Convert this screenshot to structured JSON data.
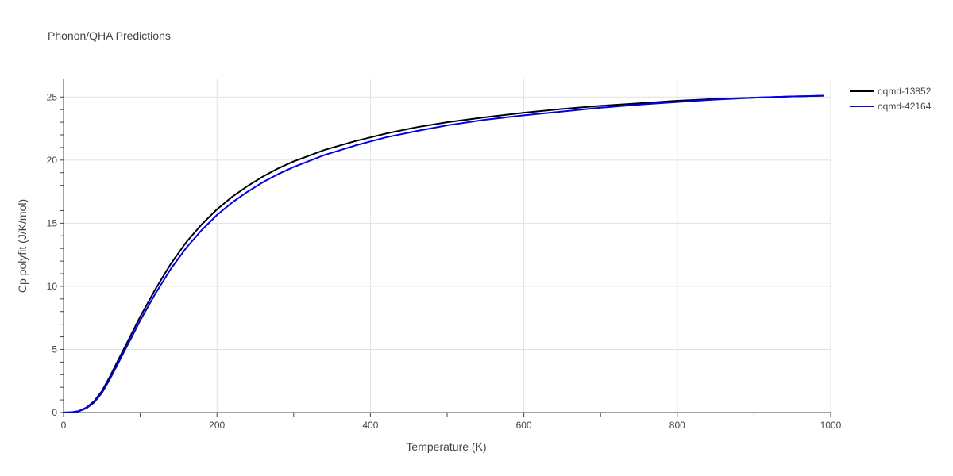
{
  "chart_data": {
    "type": "line",
    "title": "Phonon/QHA Predictions",
    "xlabel": "Temperature (K)",
    "ylabel": "Cp polyfit (J/K/mol)",
    "xlim": [
      0,
      1000
    ],
    "ylim": [
      0,
      26.4
    ],
    "xticks": [
      0,
      200,
      400,
      600,
      800,
      1000
    ],
    "yticks": [
      0,
      5,
      10,
      15,
      20,
      25
    ],
    "xtick_labels": [
      "0",
      "200",
      "400",
      "600",
      "800",
      "1000"
    ],
    "ytick_labels": [
      "0",
      "5",
      "10",
      "15",
      "20",
      "25"
    ],
    "grid": true,
    "legend_position": "top-right",
    "series": [
      {
        "name": "oqmd-13852",
        "color": "#000000",
        "x": [
          0,
          10,
          20,
          30,
          40,
          50,
          60,
          70,
          80,
          90,
          100,
          120,
          140,
          160,
          180,
          200,
          220,
          240,
          260,
          280,
          300,
          340,
          380,
          420,
          460,
          500,
          550,
          600,
          650,
          700,
          750,
          800,
          850,
          900,
          950,
          990
        ],
        "y": [
          0,
          0.02,
          0.12,
          0.4,
          0.9,
          1.7,
          2.8,
          4.0,
          5.2,
          6.4,
          7.6,
          9.8,
          11.8,
          13.5,
          14.9,
          16.1,
          17.1,
          17.95,
          18.7,
          19.35,
          19.9,
          20.8,
          21.5,
          22.1,
          22.6,
          23.0,
          23.4,
          23.75,
          24.05,
          24.3,
          24.5,
          24.7,
          24.85,
          24.95,
          25.05,
          25.1
        ]
      },
      {
        "name": "oqmd-42164",
        "color": "#0000ee",
        "x": [
          0,
          10,
          20,
          30,
          40,
          50,
          60,
          70,
          80,
          90,
          100,
          120,
          140,
          160,
          180,
          200,
          220,
          240,
          260,
          280,
          300,
          340,
          380,
          420,
          460,
          500,
          550,
          600,
          650,
          700,
          750,
          800,
          850,
          900,
          950,
          990
        ],
        "y": [
          0,
          0.02,
          0.1,
          0.35,
          0.8,
          1.55,
          2.6,
          3.75,
          4.95,
          6.1,
          7.3,
          9.45,
          11.4,
          13.05,
          14.45,
          15.65,
          16.65,
          17.5,
          18.25,
          18.9,
          19.45,
          20.4,
          21.15,
          21.8,
          22.3,
          22.75,
          23.2,
          23.55,
          23.85,
          24.15,
          24.4,
          24.6,
          24.8,
          24.95,
          25.05,
          25.1
        ]
      }
    ]
  }
}
